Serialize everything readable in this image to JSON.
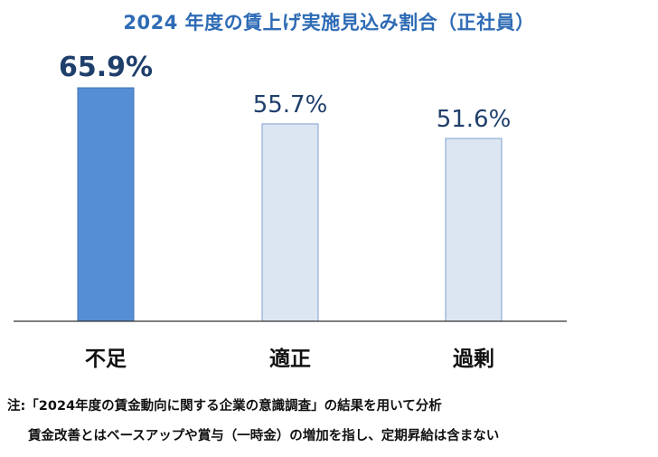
{
  "chart_data": {
    "type": "bar",
    "title": "2024 年度の賃上げ実施見込み割合（正社員）",
    "categories": [
      "不足",
      "適正",
      "過剰"
    ],
    "values": [
      65.9,
      55.7,
      51.6
    ],
    "value_labels": [
      "65.9%",
      "55.7%",
      "51.6%"
    ],
    "highlight_index": 0,
    "colors": {
      "highlight_fill": "#558ed5",
      "highlight_stroke": "#3f73b8",
      "normal_fill": "#dce6f2",
      "normal_stroke": "#7f9fcf",
      "title": "#2e6bb5",
      "value_label": "#1f3f6b"
    },
    "xlabel": "",
    "ylabel": "",
    "grid": false,
    "legend": "none"
  },
  "notes": {
    "line1": "注:「2024年度の賃金動向に関する企業の意識調査」の結果を用いて分析",
    "line2": "賃金改善とはベースアップや賞与（一時金）の増加を指し、定期昇給は含まない"
  }
}
